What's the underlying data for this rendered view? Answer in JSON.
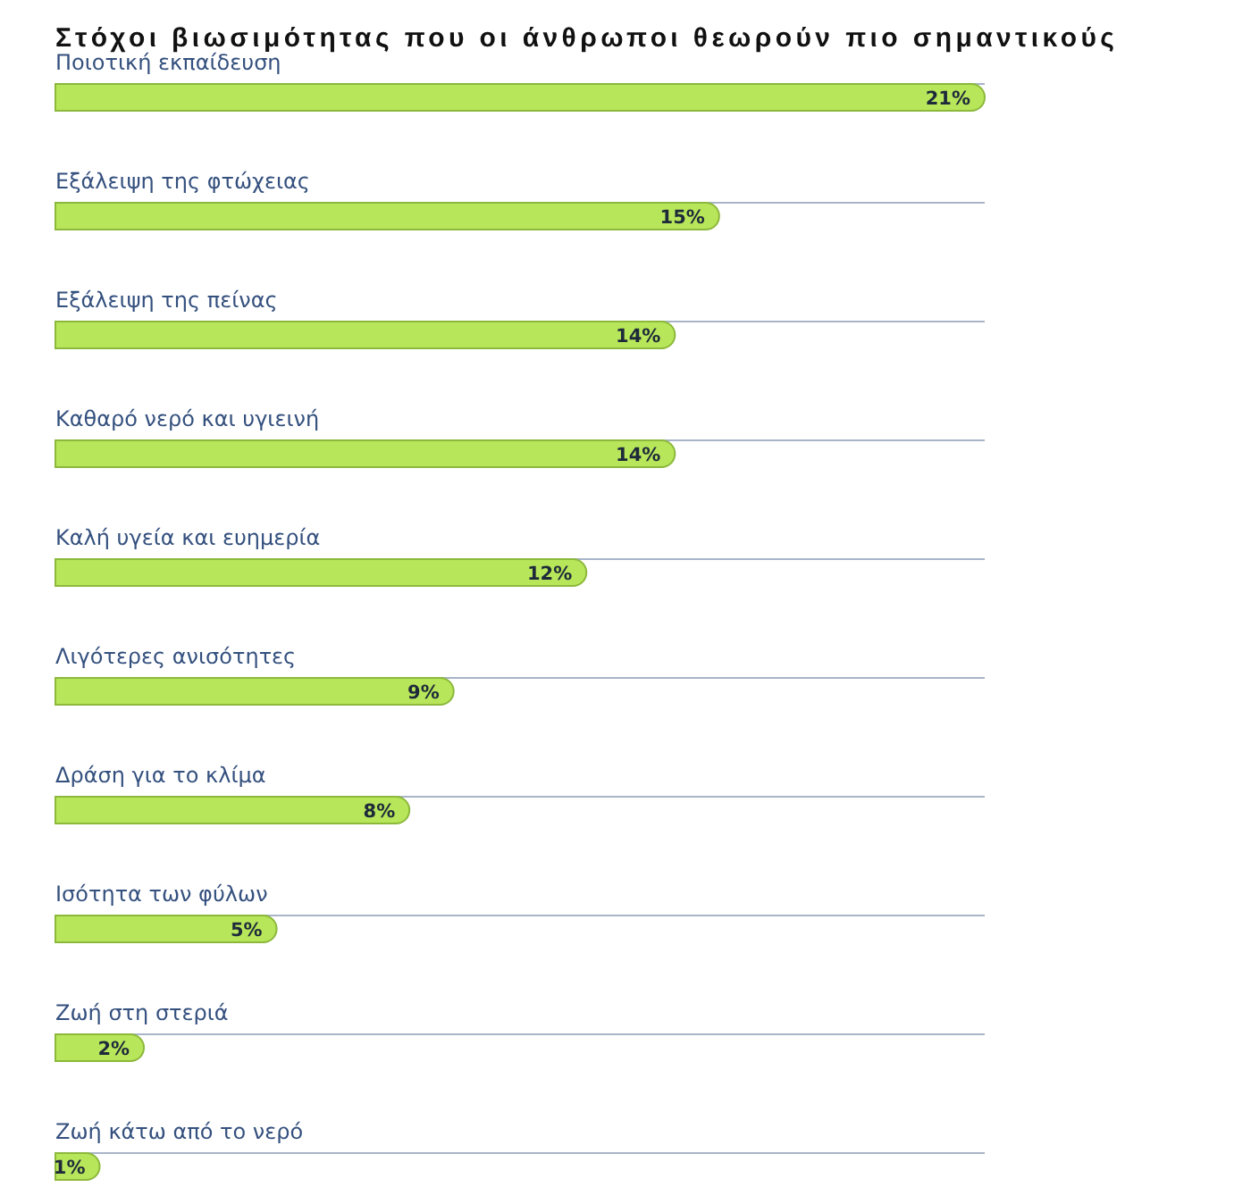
{
  "chart_data": {
    "type": "bar",
    "orientation": "horizontal",
    "title": "Στόχοι βιωσιμότητας που οι άνθρωποι θεωρούν πιο σημαντικούς",
    "categories": [
      "Ποιοτική εκπαίδευση",
      "Εξάλειψη της φτώχειας",
      "Εξάλειψη της πείνας",
      "Καθαρό νερό και υγιεινή",
      "Καλή υγεία και ευημερία",
      "Λιγότερες ανισότητες",
      "Δράση για το κλίμα",
      "Ισότητα των φύλων",
      "Ζωή στη στεριά",
      "Ζωή κάτω από το νερό"
    ],
    "values": [
      21,
      15,
      14,
      14,
      12,
      9,
      8,
      5,
      2,
      1
    ],
    "value_labels": [
      "21%",
      "15%",
      "14%",
      "14%",
      "12%",
      "9%",
      "8%",
      "5%",
      "2%",
      "1%"
    ],
    "color": "#b8e65a",
    "grid": "y"
  }
}
